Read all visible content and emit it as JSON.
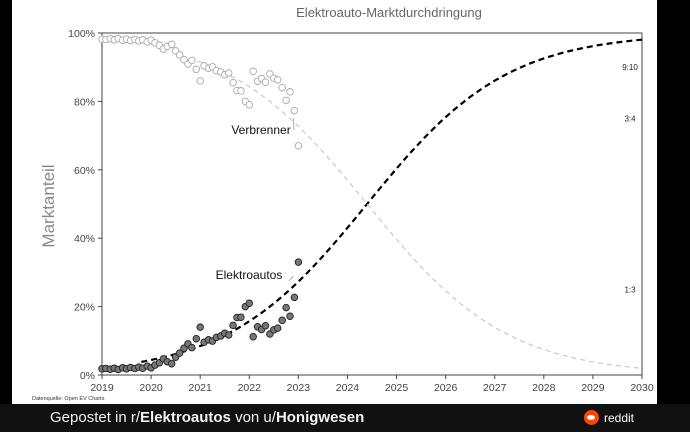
{
  "chart_data": {
    "type": "scatter",
    "title": "Elektroauto-Marktdurchdringung",
    "ylabel": "Marktanteil",
    "xlabel": "",
    "xlim": [
      2019,
      2030
    ],
    "ylim": [
      0,
      100
    ],
    "x_ticks": [
      "2019",
      "2020",
      "2021",
      "2022",
      "2023",
      "2024",
      "2025",
      "2026",
      "2027",
      "2028",
      "2029",
      "2030"
    ],
    "y_ticks": [
      "0%",
      "20%",
      "40%",
      "60%",
      "80%",
      "100%"
    ],
    "source": "Datenquelle: Open EV Charts",
    "annotations": [
      {
        "text": "Verbrenner",
        "x": 2022.9,
        "y": 75
      },
      {
        "text": "Elektroautos",
        "x": 2022.9,
        "y": 29
      }
    ],
    "ratio_labels": [
      {
        "text": "9:10",
        "y": 90
      },
      {
        "text": "3:4",
        "y": 75
      },
      {
        "text": "1:3",
        "y": 25
      }
    ],
    "series": [
      {
        "name": "Elektroautos",
        "kind": "points",
        "points": [
          [
            2019.0,
            1.8
          ],
          [
            2019.08,
            1.9
          ],
          [
            2019.17,
            1.7
          ],
          [
            2019.25,
            2.0
          ],
          [
            2019.33,
            1.6
          ],
          [
            2019.42,
            2.1
          ],
          [
            2019.5,
            1.8
          ],
          [
            2019.58,
            2.2
          ],
          [
            2019.67,
            1.9
          ],
          [
            2019.75,
            2.3
          ],
          [
            2019.83,
            2.0
          ],
          [
            2019.92,
            2.6
          ],
          [
            2020.0,
            2.1
          ],
          [
            2020.08,
            2.9
          ],
          [
            2020.17,
            3.6
          ],
          [
            2020.25,
            4.7
          ],
          [
            2020.33,
            3.9
          ],
          [
            2020.42,
            3.3
          ],
          [
            2020.5,
            5.2
          ],
          [
            2020.58,
            6.4
          ],
          [
            2020.67,
            7.8
          ],
          [
            2020.75,
            9.1
          ],
          [
            2020.83,
            8.0
          ],
          [
            2020.92,
            10.6
          ],
          [
            2021.0,
            14.0
          ],
          [
            2021.08,
            9.6
          ],
          [
            2021.17,
            10.3
          ],
          [
            2021.25,
            9.9
          ],
          [
            2021.33,
            11.0
          ],
          [
            2021.42,
            11.4
          ],
          [
            2021.5,
            12.2
          ],
          [
            2021.58,
            11.7
          ],
          [
            2021.67,
            14.5
          ],
          [
            2021.75,
            16.8
          ],
          [
            2021.83,
            16.9
          ],
          [
            2021.92,
            20.0
          ],
          [
            2022.0,
            21.0
          ],
          [
            2022.08,
            11.2
          ],
          [
            2022.17,
            14.1
          ],
          [
            2022.25,
            13.3
          ],
          [
            2022.33,
            14.4
          ],
          [
            2022.42,
            12.0
          ],
          [
            2022.5,
            13.2
          ],
          [
            2022.58,
            13.7
          ],
          [
            2022.67,
            16.0
          ],
          [
            2022.75,
            19.7
          ],
          [
            2022.83,
            17.2
          ],
          [
            2022.92,
            22.7
          ],
          [
            2023.0,
            33.0
          ]
        ]
      },
      {
        "name": "Verbrenner",
        "kind": "points",
        "points": [
          [
            2019.0,
            98.2
          ],
          [
            2019.08,
            98.1
          ],
          [
            2019.17,
            98.3
          ],
          [
            2019.25,
            98.0
          ],
          [
            2019.33,
            98.4
          ],
          [
            2019.42,
            97.9
          ],
          [
            2019.5,
            98.2
          ],
          [
            2019.58,
            97.8
          ],
          [
            2019.67,
            98.1
          ],
          [
            2019.75,
            97.7
          ],
          [
            2019.83,
            98.0
          ],
          [
            2019.92,
            97.4
          ],
          [
            2020.0,
            97.9
          ],
          [
            2020.08,
            97.1
          ],
          [
            2020.17,
            96.4
          ],
          [
            2020.25,
            95.3
          ],
          [
            2020.33,
            96.1
          ],
          [
            2020.42,
            96.7
          ],
          [
            2020.5,
            94.8
          ],
          [
            2020.58,
            93.6
          ],
          [
            2020.67,
            92.2
          ],
          [
            2020.75,
            90.9
          ],
          [
            2020.83,
            92.0
          ],
          [
            2020.92,
            89.4
          ],
          [
            2021.0,
            86.0
          ],
          [
            2021.08,
            90.4
          ],
          [
            2021.17,
            89.7
          ],
          [
            2021.25,
            90.1
          ],
          [
            2021.33,
            89.0
          ],
          [
            2021.42,
            88.6
          ],
          [
            2021.5,
            87.8
          ],
          [
            2021.58,
            88.3
          ],
          [
            2021.67,
            85.5
          ],
          [
            2021.75,
            83.2
          ],
          [
            2021.83,
            83.1
          ],
          [
            2021.92,
            80.0
          ],
          [
            2022.0,
            79.0
          ],
          [
            2022.08,
            88.8
          ],
          [
            2022.17,
            85.9
          ],
          [
            2022.25,
            86.7
          ],
          [
            2022.33,
            85.6
          ],
          [
            2022.42,
            88.0
          ],
          [
            2022.5,
            86.8
          ],
          [
            2022.58,
            86.3
          ],
          [
            2022.67,
            84.0
          ],
          [
            2022.75,
            80.3
          ],
          [
            2022.83,
            82.8
          ],
          [
            2022.92,
            77.3
          ],
          [
            2023.0,
            67.0
          ]
        ]
      },
      {
        "name": "Elektroautos Trend",
        "kind": "logistic",
        "x0": 2024.4,
        "k": 0.7,
        "x_range": [
          2019.8,
          2030.0
        ]
      },
      {
        "name": "Verbrenner Trend",
        "kind": "logistic-complement",
        "x0": 2024.4,
        "k": 0.7,
        "x_range": [
          2020.6,
          2030.0
        ]
      }
    ]
  },
  "footer": {
    "prefix": "Gepostet in r/",
    "subreddit": "Elektroautos",
    "middle": " von u/",
    "user": "Honigwesen",
    "brand": "reddit",
    "brand_icon": "reddit-logo-icon",
    "brand_color": "#ff4500"
  }
}
